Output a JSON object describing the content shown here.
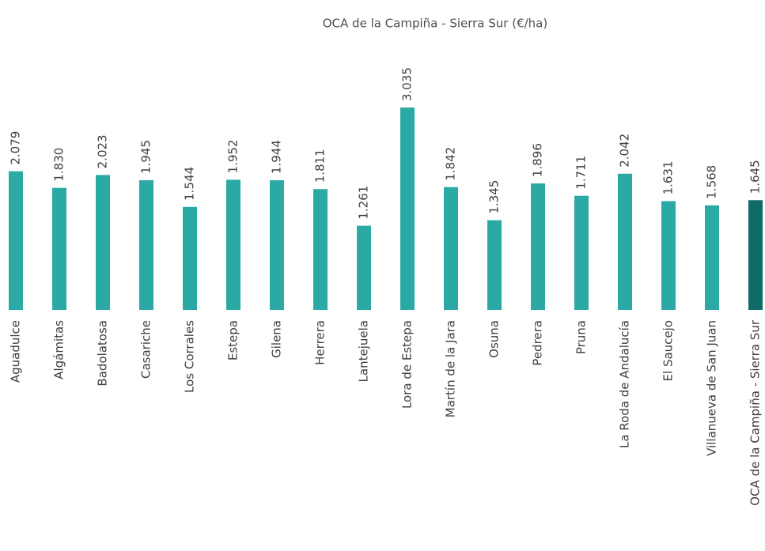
{
  "chart_data": {
    "type": "bar",
    "title": "OCA de la Campiña - Sierra Sur (€/ha)",
    "categories": [
      "Aguadulce",
      "Algámitas",
      "Badolatosa",
      "Casariche",
      "Los Corrales",
      "Estepa",
      "Gilena",
      "Herrera",
      "Lantejuela",
      "Lora de Estepa",
      "Martín de la Jara",
      "Osuna",
      "Pedrera",
      "Pruna",
      "La Roda de Andalucía",
      "El Saucejo",
      "Villanueva de San Juan",
      "OCA de la Campiña - Sierra Sur"
    ],
    "values": [
      2079,
      1830,
      2023,
      1945,
      1544,
      1952,
      1944,
      1811,
      1261,
      3035,
      1842,
      1345,
      1896,
      1711,
      2042,
      1631,
      1568,
      1645
    ],
    "value_labels": [
      "2.079",
      "1.830",
      "2.023",
      "1.945",
      "1.544",
      "1.952",
      "1.944",
      "1.811",
      "1.261",
      "3.035",
      "1.842",
      "1.345",
      "1.896",
      "1.711",
      "2.042",
      "1.631",
      "1.568",
      "1.645"
    ],
    "colors": [
      "#2aa9a5",
      "#2aa9a5",
      "#2aa9a5",
      "#2aa9a5",
      "#2aa9a5",
      "#2aa9a5",
      "#2aa9a5",
      "#2aa9a5",
      "#2aa9a5",
      "#2aa9a5",
      "#2aa9a5",
      "#2aa9a5",
      "#2aa9a5",
      "#2aa9a5",
      "#2aa9a5",
      "#2aa9a5",
      "#2aa9a5",
      "#0e6b68"
    ]
  }
}
